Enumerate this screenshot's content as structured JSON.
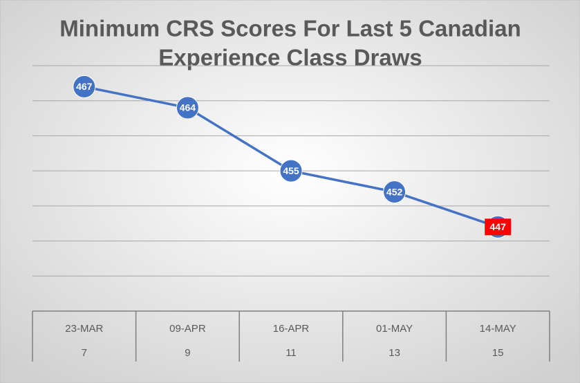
{
  "chart_data": {
    "type": "line",
    "title_lines": [
      "Minimum CRS Scores For Last 5 Canadian",
      "Experience Class Draws"
    ],
    "categories": [
      "23-MAR",
      "09-APR",
      "16-APR",
      "01-MAY",
      "14-MAY"
    ],
    "categories2": [
      "7",
      "9",
      "11",
      "13",
      "15"
    ],
    "series": [
      {
        "name": "Minimum CRS",
        "color": "#4472c4",
        "values": [
          467,
          464,
          455,
          452,
          447
        ]
      }
    ],
    "point_label_backgrounds": [
      "#4472c4",
      "#4472c4",
      "#4472c4",
      "#4472c4",
      "#ff0000"
    ],
    "ylim": [
      435,
      470
    ],
    "yticks": [
      435,
      440,
      445,
      450,
      455,
      460,
      465,
      470
    ],
    "grid": true
  }
}
